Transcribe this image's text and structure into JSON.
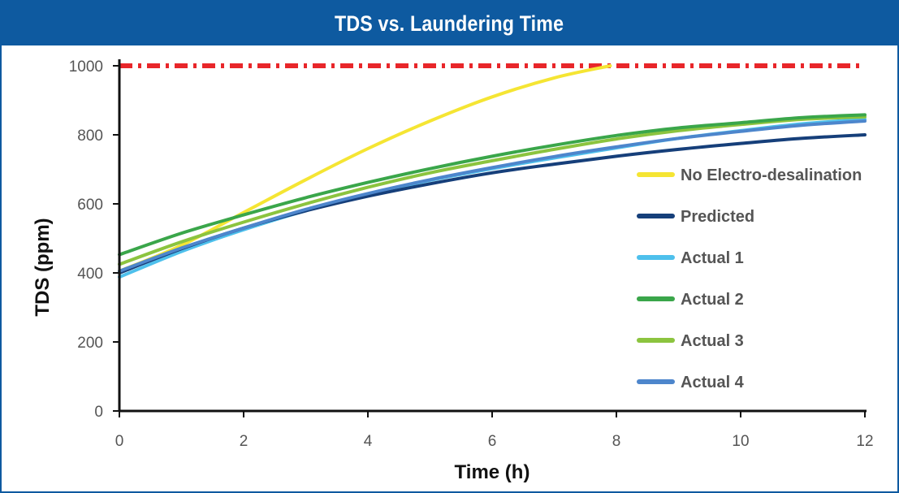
{
  "chart_data": {
    "type": "line",
    "title": "TDS vs. Laundering Time",
    "xlabel": "Time (h)",
    "ylabel": "TDS (ppm)",
    "xlim": [
      0,
      12
    ],
    "ylim": [
      0,
      1000
    ],
    "xticks": [
      "0",
      "2",
      "4",
      "6",
      "8",
      "10",
      "12"
    ],
    "yticks": [
      "0",
      "200",
      "400",
      "600",
      "800",
      "1000"
    ],
    "threshold": {
      "y": 1000,
      "color": "#e8262a",
      "style": "dash-dot"
    },
    "legend_position": "right",
    "series": [
      {
        "name": "No Electro-desalination",
        "color": "#f5e533",
        "x": [
          0,
          1,
          2,
          3,
          4,
          5,
          6,
          7,
          7.9
        ],
        "y": [
          405,
          480,
          575,
          670,
          760,
          840,
          910,
          965,
          1000
        ]
      },
      {
        "name": "Predicted",
        "color": "#163f7a",
        "x": [
          0,
          1,
          2,
          3,
          4,
          5,
          6,
          7,
          8,
          9,
          10,
          11,
          12
        ],
        "y": [
          400,
          470,
          530,
          580,
          622,
          658,
          690,
          715,
          738,
          758,
          775,
          790,
          800
        ]
      },
      {
        "name": "Actual 1",
        "color": "#4ec0ec",
        "x": [
          0,
          1,
          2,
          3,
          4,
          5,
          6,
          7,
          8,
          9,
          10,
          11,
          12
        ],
        "y": [
          388,
          462,
          525,
          580,
          628,
          668,
          702,
          733,
          762,
          790,
          812,
          832,
          845
        ]
      },
      {
        "name": "Actual 2",
        "color": "#3aa64a",
        "x": [
          0,
          1,
          2,
          3,
          4,
          5,
          6,
          7,
          8,
          9,
          10,
          11,
          12
        ],
        "y": [
          453,
          515,
          568,
          618,
          662,
          702,
          738,
          770,
          798,
          820,
          835,
          850,
          858
        ]
      },
      {
        "name": "Actual 3",
        "color": "#8cc43f",
        "x": [
          0,
          1,
          2,
          3,
          4,
          5,
          6,
          7,
          8,
          9,
          10,
          11,
          12
        ],
        "y": [
          425,
          490,
          547,
          600,
          648,
          690,
          725,
          758,
          788,
          812,
          830,
          845,
          852
        ]
      },
      {
        "name": "Actual 4",
        "color": "#4d86cc",
        "x": [
          0,
          1,
          2,
          3,
          4,
          5,
          6,
          7,
          8,
          9,
          10,
          11,
          12
        ],
        "y": [
          405,
          472,
          530,
          584,
          630,
          670,
          705,
          737,
          765,
          790,
          810,
          828,
          840
        ]
      }
    ]
  }
}
